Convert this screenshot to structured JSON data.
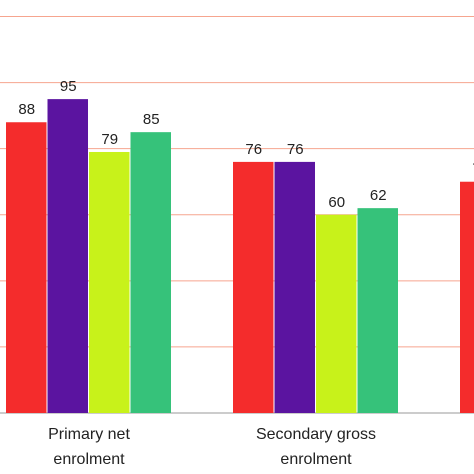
{
  "chart_data": {
    "type": "bar",
    "categories": [
      "Primary net enrolment",
      "Secondary gross enrolment",
      null
    ],
    "series": [
      {
        "color": "#f42c2c",
        "values": [
          88,
          76,
          70
        ]
      },
      {
        "color": "#5b14a0",
        "values": [
          95,
          76,
          null
        ]
      },
      {
        "color": "#c8f21a",
        "values": [
          79,
          60,
          null
        ]
      },
      {
        "color": "#36c27a",
        "values": [
          85,
          62,
          null
        ]
      }
    ],
    "ylim": [
      0,
      125
    ],
    "yticks": [
      0,
      20,
      40,
      60,
      80,
      100,
      120
    ],
    "grid": true
  }
}
